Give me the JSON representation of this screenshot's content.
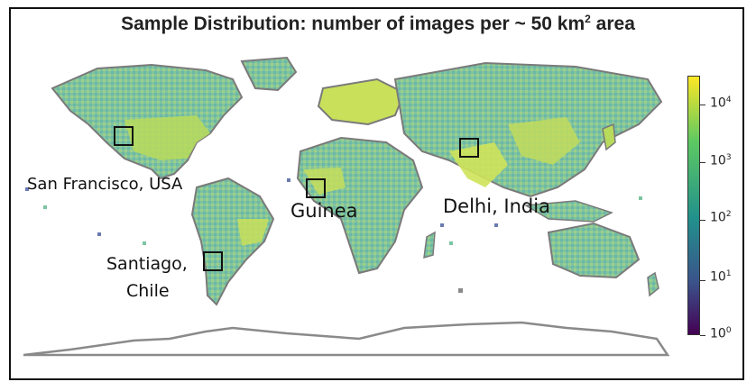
{
  "title": {
    "main": "Sample Distribution: number of images per ~ 50 km",
    "sup": "2",
    "tail": " area"
  },
  "colorbar": {
    "scale": "log",
    "colormap": "viridis",
    "ticks": [
      {
        "base": "10",
        "exp": "0"
      },
      {
        "base": "10",
        "exp": "1"
      },
      {
        "base": "10",
        "exp": "2"
      },
      {
        "base": "10",
        "exp": "3"
      },
      {
        "base": "10",
        "exp": "4"
      }
    ]
  },
  "places": [
    {
      "id": "sf",
      "label": "San Francisco, USA"
    },
    {
      "id": "guinea",
      "label": "Guinea"
    },
    {
      "id": "delhi",
      "label": "Delhi, India"
    },
    {
      "id": "santiago",
      "label": "Santiago,",
      "label2": "Chile"
    }
  ],
  "colors": {
    "low": "#440154",
    "mid": "#21918c",
    "high": "#fde725",
    "border": "#7a7a7a",
    "antarctica": "#ffffff"
  }
}
